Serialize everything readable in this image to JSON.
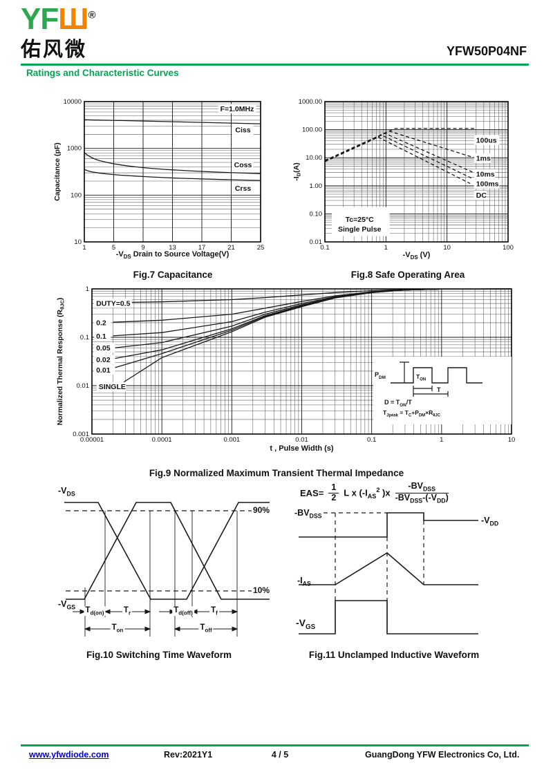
{
  "header": {
    "logo_green": "YF",
    "logo_orange": "Ш",
    "logo_reg": "®",
    "logo_cn": "佑风微",
    "part_number": "YFW50P04NF",
    "section_title": "Ratings and Characteristic Curves"
  },
  "colors": {
    "brand_green": "#00A651",
    "logo_green": "#2EA84F",
    "logo_orange": "#F08300",
    "link_blue": "#0000EE",
    "line_black": "#191919"
  },
  "chart_data": [
    {
      "id": "fig7",
      "type": "line",
      "title": "Fig.7 Capacitance",
      "x": {
        "type": "linear",
        "min": 1,
        "max": 25,
        "title": "-V~DS~ Drain to Source Voltage(V)",
        "ticks": [
          1,
          5,
          9,
          13,
          17,
          21,
          25
        ]
      },
      "y": {
        "type": "log",
        "min": 10,
        "max": 10000,
        "title": "Capacitance (pF)",
        "ticks": [
          10,
          100,
          1000,
          10000
        ]
      },
      "series": [
        {
          "name": "Ciss",
          "points": [
            [
              1,
              4100
            ],
            [
              3,
              4020
            ],
            [
              6,
              3930
            ],
            [
              10,
              3800
            ],
            [
              14,
              3680
            ],
            [
              18,
              3560
            ],
            [
              22,
              3440
            ],
            [
              25,
              3350
            ]
          ]
        },
        {
          "name": "Coss",
          "points": [
            [
              1,
              810
            ],
            [
              1.5,
              705
            ],
            [
              2,
              635
            ],
            [
              2.5,
              585
            ],
            [
              3,
              550
            ],
            [
              4,
              505
            ],
            [
              5,
              468
            ],
            [
              6,
              442
            ],
            [
              7,
              420
            ],
            [
              8,
              403
            ],
            [
              9,
              388
            ],
            [
              10,
              375
            ],
            [
              12,
              355
            ],
            [
              14,
              340
            ],
            [
              16,
              327
            ],
            [
              18,
              316
            ],
            [
              20,
              307
            ],
            [
              22,
              299
            ],
            [
              25,
              288
            ]
          ]
        },
        {
          "name": "Crss",
          "points": [
            [
              1,
              355
            ],
            [
              1.5,
              330
            ],
            [
              2,
              315
            ],
            [
              3,
              297
            ],
            [
              4,
              285
            ],
            [
              5,
              275
            ],
            [
              6,
              267
            ],
            [
              7,
              261
            ],
            [
              8,
              255
            ],
            [
              9,
              250
            ],
            [
              10,
              245
            ],
            [
              12,
              237
            ],
            [
              14,
              230
            ],
            [
              16,
              225
            ],
            [
              18,
              220
            ],
            [
              20,
              215
            ],
            [
              22,
              211
            ],
            [
              25,
              206
            ]
          ]
        }
      ],
      "annotations": [
        {
          "text": "F=1.0MHz",
          "x": 21.8,
          "y": 7000
        },
        {
          "text": "Ciss",
          "x": 22.6,
          "y": 2450
        },
        {
          "text": "Coss",
          "x": 22.6,
          "y": 440
        },
        {
          "text": "Crss",
          "x": 22.6,
          "y": 140
        }
      ]
    },
    {
      "id": "fig8",
      "type": "line",
      "title": "Fig.8 Safe Operating Area",
      "x": {
        "type": "log",
        "min": 0.1,
        "max": 100,
        "title": "-V~DS~ (V)",
        "ticks": [
          {
            "v": 0.1,
            "label": "0.1"
          },
          {
            "v": 1,
            "label": "1"
          },
          {
            "v": 10,
            "label": "10"
          },
          {
            "v": 100,
            "label": "100"
          }
        ]
      },
      "y": {
        "type": "log",
        "min": 0.01,
        "max": 1000,
        "title": "-I~D~(A)",
        "ticks": [
          {
            "v": 1000,
            "label": "1000.00"
          },
          {
            "v": 100,
            "label": "100.00"
          },
          {
            "v": 10,
            "label": "10.00"
          },
          {
            "v": 1,
            "label": "1.00"
          },
          {
            "v": 0.1,
            "label": "0.10"
          },
          {
            "v": 0.01,
            "label": "0.01"
          }
        ]
      },
      "boxes": [
        {
          "x0": 0.13,
          "x1": 1.15,
          "y0": 0.016,
          "y1": 0.175
        }
      ],
      "series": [
        {
          "name": "100us",
          "dash": true,
          "points": [
            [
              0.1,
              8
            ],
            [
              1.4,
              110
            ],
            [
              28,
              110
            ]
          ]
        },
        {
          "name": "1ms",
          "dash": true,
          "points": [
            [
              0.1,
              7.8
            ],
            [
              1.15,
              88
            ],
            [
              28,
              10
            ]
          ]
        },
        {
          "name": "10ms",
          "dash": true,
          "points": [
            [
              0.1,
              7.6
            ],
            [
              0.95,
              75
            ],
            [
              26,
              3.1
            ]
          ]
        },
        {
          "name": "100ms",
          "dash": true,
          "points": [
            [
              0.1,
              7.4
            ],
            [
              0.85,
              64
            ],
            [
              25,
              1.9
            ]
          ]
        },
        {
          "name": "DC",
          "dash": true,
          "points": [
            [
              0.1,
              7.2
            ],
            [
              0.75,
              54
            ],
            [
              24,
              1.2
            ]
          ]
        }
      ],
      "annotations": [
        {
          "text": "100us",
          "x": 30,
          "y": 42,
          "anchor": "start"
        },
        {
          "text": "1ms",
          "x": 30,
          "y": 9.5,
          "anchor": "start"
        },
        {
          "text": "10ms",
          "x": 30,
          "y": 2.6,
          "anchor": "start"
        },
        {
          "text": "100ms",
          "x": 30,
          "y": 1.15,
          "anchor": "start"
        },
        {
          "text": "DC",
          "x": 30,
          "y": 0.45,
          "anchor": "start"
        },
        {
          "text": "Tc=25°C",
          "x": 0.37,
          "y": 0.062,
          "bg": false
        },
        {
          "text": "Single Pulse",
          "x": 0.37,
          "y": 0.028,
          "bg": false
        }
      ]
    },
    {
      "id": "fig9",
      "type": "line",
      "title": "Fig.9 Normalized Maximum Transient Thermal Impedance",
      "x": {
        "type": "log",
        "min": 1e-05,
        "max": 10,
        "title": "t , Pulse Width (s)",
        "ticks": [
          {
            "v": 1e-05,
            "label": "0.00001"
          },
          {
            "v": 0.0001,
            "label": "0.0001"
          },
          {
            "v": 0.001,
            "label": "0.001"
          },
          {
            "v": 0.01,
            "label": "0.01"
          },
          {
            "v": 0.1,
            "label": "0.1"
          },
          {
            "v": 1,
            "label": "1"
          },
          {
            "v": 10,
            "label": "10"
          }
        ]
      },
      "y": {
        "type": "log",
        "min": 0.001,
        "max": 1,
        "title": "Normalized Thermal Response (R~θJC~)",
        "ticks": [
          {
            "v": 1,
            "label": "1"
          },
          {
            "v": 0.1,
            "label": "0.1"
          },
          {
            "v": 0.01,
            "label": "0.01"
          },
          {
            "v": 0.001,
            "label": "0.001"
          }
        ]
      },
      "series": [
        {
          "name": "DUTY=0.5",
          "points": [
            [
              2e-05,
              0.52
            ],
            [
              0.0001,
              0.54
            ],
            [
              0.001,
              0.6
            ],
            [
              0.003,
              0.66
            ],
            [
              0.01,
              0.75
            ],
            [
              0.03,
              0.84
            ],
            [
              0.1,
              0.92
            ],
            [
              0.3,
              0.97
            ],
            [
              1,
              0.99
            ],
            [
              10,
              1
            ]
          ]
        },
        {
          "name": "0.2",
          "points": [
            [
              2e-05,
              0.205
            ],
            [
              0.0001,
              0.225
            ],
            [
              0.001,
              0.3
            ],
            [
              0.003,
              0.4
            ],
            [
              0.01,
              0.55
            ],
            [
              0.03,
              0.72
            ],
            [
              0.1,
              0.87
            ],
            [
              0.3,
              0.96
            ],
            [
              1,
              0.99
            ],
            [
              10,
              1
            ]
          ]
        },
        {
          "name": "0.1",
          "points": [
            [
              2e-05,
              0.107
            ],
            [
              0.0001,
              0.125
            ],
            [
              0.001,
              0.21
            ],
            [
              0.003,
              0.33
            ],
            [
              0.01,
              0.5
            ],
            [
              0.03,
              0.69
            ],
            [
              0.1,
              0.86
            ],
            [
              0.3,
              0.95
            ],
            [
              1,
              0.99
            ],
            [
              10,
              1
            ]
          ]
        },
        {
          "name": "0.05",
          "points": [
            [
              2e-05,
              0.06
            ],
            [
              0.0001,
              0.078
            ],
            [
              0.001,
              0.17
            ],
            [
              0.003,
              0.3
            ],
            [
              0.01,
              0.47
            ],
            [
              0.03,
              0.67
            ],
            [
              0.1,
              0.85
            ],
            [
              0.3,
              0.95
            ],
            [
              1,
              0.99
            ],
            [
              10,
              1
            ]
          ]
        },
        {
          "name": "0.02",
          "points": [
            [
              2e-05,
              0.036
            ],
            [
              0.0001,
              0.055
            ],
            [
              0.001,
              0.15
            ],
            [
              0.003,
              0.28
            ],
            [
              0.01,
              0.45
            ],
            [
              0.03,
              0.66
            ],
            [
              0.1,
              0.85
            ],
            [
              0.3,
              0.95
            ],
            [
              1,
              0.99
            ],
            [
              10,
              1
            ]
          ]
        },
        {
          "name": "0.01",
          "points": [
            [
              2e-05,
              0.023
            ],
            [
              0.0001,
              0.046
            ],
            [
              0.001,
              0.14
            ],
            [
              0.003,
              0.27
            ],
            [
              0.01,
              0.44
            ],
            [
              0.03,
              0.655
            ],
            [
              0.1,
              0.84
            ],
            [
              0.3,
              0.95
            ],
            [
              1,
              0.99
            ],
            [
              10,
              1
            ]
          ]
        },
        {
          "name": "SINGLE",
          "points": [
            [
              2.5e-05,
              0.0105
            ],
            [
              0.0001,
              0.038
            ],
            [
              0.001,
              0.13
            ],
            [
              0.003,
              0.26
            ],
            [
              0.01,
              0.43
            ],
            [
              0.03,
              0.65
            ],
            [
              0.1,
              0.84
            ],
            [
              0.3,
              0.95
            ],
            [
              1,
              0.99
            ],
            [
              10,
              1
            ]
          ]
        }
      ],
      "annotations": [
        {
          "text": "DUTY=0.5",
          "x": 1.15e-05,
          "y": 0.5,
          "anchor": "start"
        },
        {
          "text": "0.2",
          "x": 1.15e-05,
          "y": 0.2,
          "anchor": "start"
        },
        {
          "text": "0.1",
          "x": 1.15e-05,
          "y": 0.105,
          "anchor": "start"
        },
        {
          "text": "0.05",
          "x": 1.15e-05,
          "y": 0.06,
          "anchor": "start"
        },
        {
          "text": "0.02",
          "x": 1.15e-05,
          "y": 0.034,
          "anchor": "start"
        },
        {
          "text": "0.01",
          "x": 1.15e-05,
          "y": 0.021,
          "anchor": "start"
        },
        {
          "text": "SINGLE",
          "x": 1.25e-05,
          "y": 0.0094,
          "anchor": "start"
        }
      ]
    }
  ],
  "fig9_inset": {
    "pdm": "P~DM~",
    "ton": "T~ON~",
    "t": "T",
    "line1": "D = T~ON~/T",
    "line2": "T~Jpeak~ = T~C~+P~DM~×R~θJC~"
  },
  "fig10": {
    "caption": "Fig.10 Switching Time Waveform",
    "labels": {
      "vds": "-V~DS~",
      "vgs": "-V~GS~",
      "p90": "90%",
      "p10": "10%",
      "td_on": "T~d(on)~",
      "tr": "T~r~",
      "td_off": "T~d(off)~",
      "tf": "T~f~",
      "t_on": "T~on~",
      "t_off": "T~off~"
    }
  },
  "fig11": {
    "caption": "Fig.11 Unclamped Inductive Waveform",
    "formula": {
      "lhs": "EAS=",
      "f1n": "1",
      "f1d": "2",
      "mid": "L x (-I~AS~^2^ )x",
      "f2n": "-BV~DSS~",
      "f2d": "-BV~DSS~-(-V~DD~)"
    },
    "labels": {
      "bvdss": "-BV~DSS~",
      "vdd": "-V~DD~",
      "ias": "-I~AS~",
      "vgs": "-V~GS~"
    }
  },
  "footer": {
    "website": "www.yfwdiode.com",
    "rev": "Rev:2021Y1",
    "page": "4 / 5",
    "company": "GuangDong YFW Electronics Co, Ltd."
  }
}
